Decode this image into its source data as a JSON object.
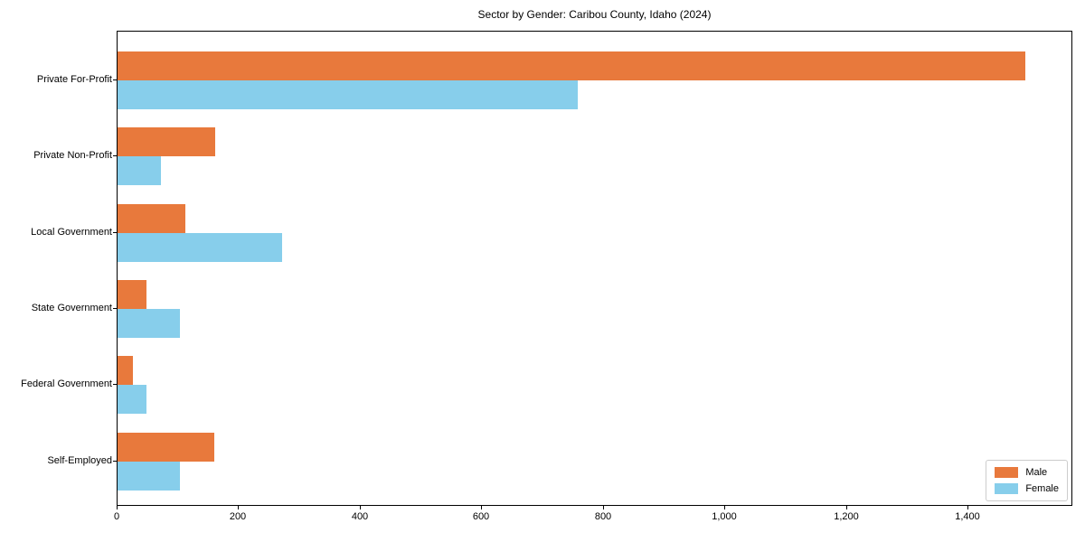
{
  "chart_data": {
    "type": "bar",
    "orientation": "horizontal",
    "title": "Sector by Gender: Caribou County, Idaho (2024)",
    "categories": [
      "Private For-Profit",
      "Private Non-Profit",
      "Local Government",
      "State Government",
      "Federal Government",
      "Self-Employed"
    ],
    "series": [
      {
        "name": "Male",
        "color": "#e8793c",
        "values": [
          1493,
          160,
          111,
          48,
          25,
          159
        ]
      },
      {
        "name": "Female",
        "color": "#87ceeb",
        "values": [
          757,
          71,
          270,
          102,
          48,
          102
        ]
      }
    ],
    "xlabel": "",
    "ylabel": "",
    "xlim": [
      0,
      1569
    ],
    "x_ticks": [
      {
        "value": 0,
        "label": "0"
      },
      {
        "value": 200,
        "label": "200"
      },
      {
        "value": 400,
        "label": "400"
      },
      {
        "value": 600,
        "label": "600"
      },
      {
        "value": 800,
        "label": "800"
      },
      {
        "value": 1000,
        "label": "1,000"
      },
      {
        "value": 1200,
        "label": "1,200"
      },
      {
        "value": 1400,
        "label": "1,400"
      }
    ],
    "grid": false,
    "legend_position": "lower right"
  }
}
